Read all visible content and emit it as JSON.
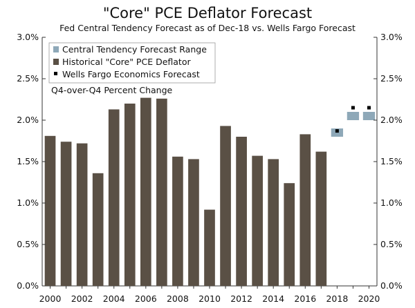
{
  "chart_data": {
    "type": "bar",
    "title": "\"Core\" PCE Deflator Forecast",
    "subtitle": "Fed Central Tendency Forecast as of Dec-18 vs. Wells Fargo Forecast",
    "annotation": "Q4-over-Q4 Percent Change",
    "x_tick_labels": [
      "2000",
      "2002",
      "2004",
      "2006",
      "2008",
      "2010",
      "2012",
      "2014",
      "2016",
      "2018",
      "2020"
    ],
    "y_tick_labels": [
      "0.0%",
      "0.5%",
      "1.0%",
      "1.5%",
      "2.0%",
      "2.5%",
      "3.0%"
    ],
    "ylim": [
      0,
      3.0
    ],
    "xlim": [
      1999.5,
      2020.5
    ],
    "grid": false,
    "legend_position": "top-left",
    "legend": [
      {
        "label": "Central Tendency Forecast Range",
        "color": "#8ea8b8",
        "marker": "square"
      },
      {
        "label": "Historical \"Core\" PCE Deflator",
        "color": "#5a5045",
        "marker": "square"
      },
      {
        "label": "Wells Fargo Economics Forecast",
        "color": "#000000",
        "marker": "dot"
      }
    ],
    "historical": {
      "name": "Historical \"Core\" PCE Deflator",
      "color": "#5a5045",
      "x": [
        2000,
        2001,
        2002,
        2003,
        2004,
        2005,
        2006,
        2007,
        2008,
        2009,
        2010,
        2011,
        2012,
        2013,
        2014,
        2015,
        2016,
        2017
      ],
      "values": [
        1.81,
        1.74,
        1.72,
        1.36,
        2.13,
        2.2,
        2.27,
        2.26,
        1.56,
        1.53,
        0.92,
        1.93,
        1.8,
        1.57,
        1.53,
        1.24,
        1.83,
        1.62
      ]
    },
    "central_tendency": {
      "name": "Central Tendency Forecast Range",
      "color": "#8ea8b8",
      "ranges": [
        {
          "x": 2018,
          "low": 1.8,
          "high": 1.9
        },
        {
          "x": 2019,
          "low": 2.0,
          "high": 2.1
        },
        {
          "x": 2020,
          "low": 2.0,
          "high": 2.1
        }
      ]
    },
    "wells_fargo_forecast": {
      "name": "Wells Fargo Economics Forecast",
      "color": "#000000",
      "x": [
        2018,
        2019,
        2020
      ],
      "values": [
        1.87,
        2.15,
        2.15
      ]
    }
  }
}
